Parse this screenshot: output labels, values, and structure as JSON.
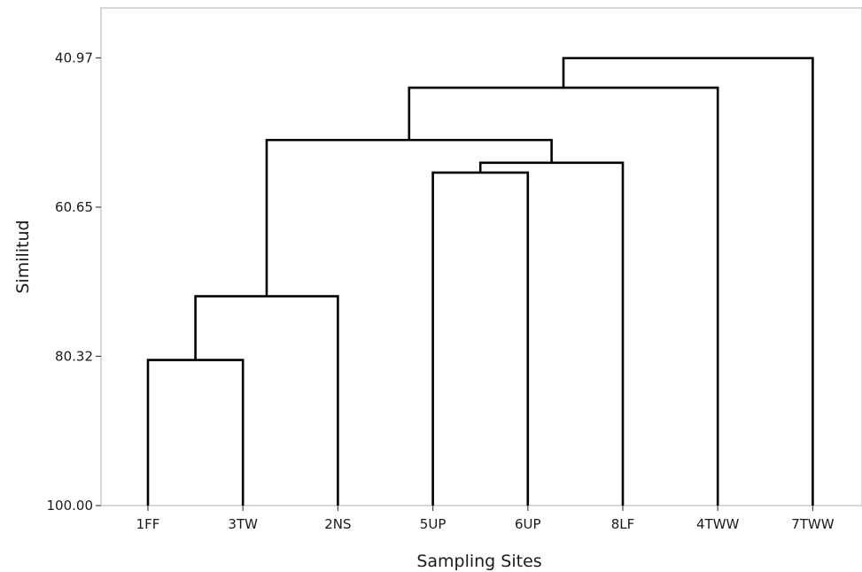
{
  "chart_data": {
    "type": "dendrogram",
    "title": "",
    "xlabel": "Sampling Sites",
    "ylabel": "Similitud",
    "ylim": [
      100.0,
      34.39
    ],
    "y_ticks": [
      "40.97",
      "60.65",
      "80.32",
      "100.00"
    ],
    "y_tick_values": [
      40.97,
      60.65,
      80.32,
      100.0
    ],
    "leaves": [
      "1FF",
      "3TW",
      "2NS",
      "5UP",
      "6UP",
      "8LF",
      "4TWW",
      "7TWW"
    ],
    "merges": [
      {
        "left": "1FF",
        "right": "3TW",
        "similarity": 80.8
      },
      {
        "left": "1FF+3TW",
        "right": "2NS",
        "similarity": 72.4
      },
      {
        "left": "5UP",
        "right": "6UP",
        "similarity": 56.1
      },
      {
        "left": "5UP+6UP",
        "right": "8LF",
        "similarity": 54.8
      },
      {
        "left": "1FF+3TW+2NS",
        "right": "5UP+6UP+8LF",
        "similarity": 51.8
      },
      {
        "left": "all_6",
        "right": "4TWW",
        "similarity": 44.9
      },
      {
        "left": "all_7",
        "right": "7TWW",
        "similarity": 41.0
      }
    ],
    "grid": false,
    "line_color": "#000000"
  }
}
